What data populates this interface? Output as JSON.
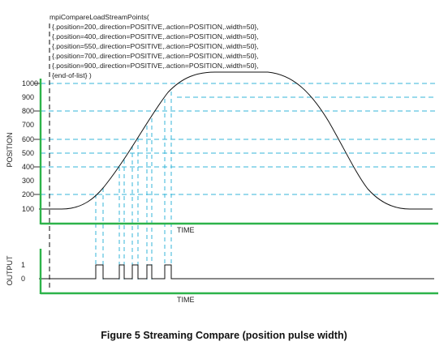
{
  "code": {
    "title": "mpiCompareLoadStreamPoints(",
    "lines": [
      "{.position=200,.direction=POSITIVE,.action=POSITION,.width=50},",
      "{.position=400,.direction=POSITIVE,.action=POSITION,.width=50},",
      "{.position=550,.direction=POSITIVE,.action=POSITION,.width=50},",
      "{.position=700,.direction=POSITIVE,.action=POSITION,.width=50},",
      "{.position=900,.direction=POSITIVE,.action=POSITION,.width=50},",
      "{end-of-list} )"
    ]
  },
  "position_chart": {
    "ylabel": "POSITION",
    "xlabel": "TIME",
    "ticks": [
      "1000",
      "900",
      "800",
      "700",
      "600",
      "500",
      "400",
      "300",
      "200",
      "100"
    ]
  },
  "output_chart": {
    "ylabel": "OUTPUT",
    "xlabel": "TIME",
    "ticks": [
      "1",
      "0"
    ]
  },
  "caption": "Figure 5 Streaming Compare (position pulse width)",
  "colors": {
    "axis": "#2db34a",
    "guide": "#35b6d8",
    "curve": "#111111",
    "marker": "#333333"
  }
}
